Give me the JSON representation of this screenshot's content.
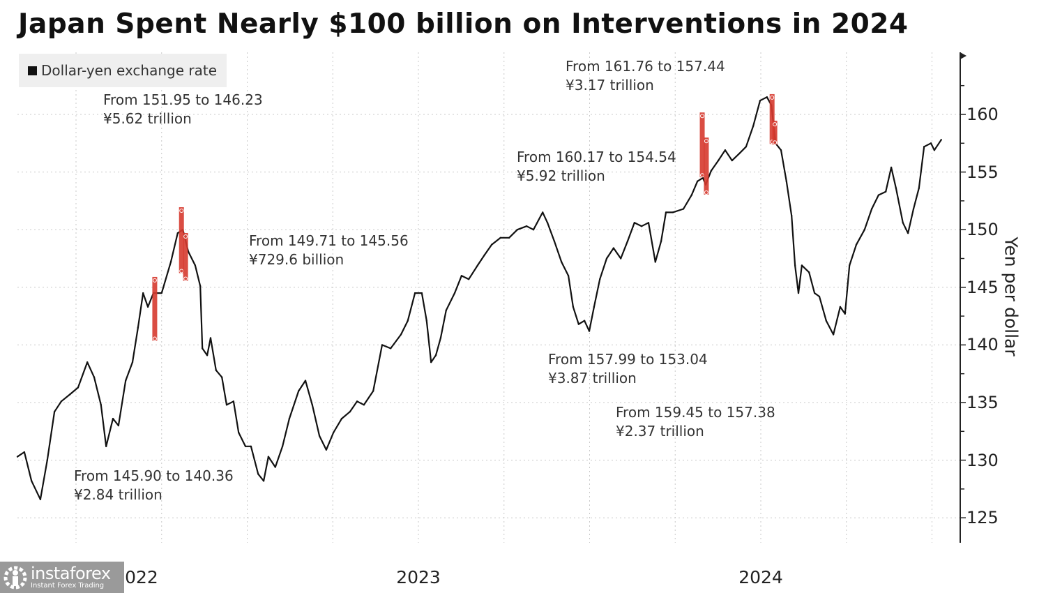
{
  "title": "Japan Spent Nearly $100 billion on Interventions in 2024",
  "watermark": {
    "brand": "instaforex",
    "tagline": "Instant Forex Trading"
  },
  "chart_data": {
    "type": "line",
    "title": "Japan Spent Nearly $100 billion on Interventions in 2024",
    "ylabel": "Yen per dollar",
    "xlabel": "",
    "y_axis_side": "right",
    "ylim": [
      123.5,
      164.5
    ],
    "yticks": [
      125,
      130,
      135,
      140,
      145,
      150,
      155,
      160
    ],
    "xlim": [
      2021.82,
      2024.53
    ],
    "xticks": [
      {
        "value": 2022,
        "label": "2022"
      },
      {
        "value": 2023,
        "label": "2023"
      },
      {
        "value": 2024,
        "label": "2024"
      }
    ],
    "grid": true,
    "legend": {
      "position": "top-left",
      "entries": [
        "Dollar-yen exchange rate"
      ]
    },
    "colors": {
      "series": "#111111",
      "intervention": "#d63a2f",
      "grid": "#c8c8c8",
      "legend_bg": "#efefef"
    },
    "series": [
      {
        "name": "Dollar-yen exchange rate",
        "x": [
          2021.829,
          2021.849,
          2021.87,
          2021.896,
          2021.916,
          2021.937,
          2021.957,
          2021.982,
          2022.006,
          2022.033,
          2022.053,
          2022.073,
          2022.088,
          2022.108,
          2022.124,
          2022.145,
          2022.165,
          2022.181,
          2022.196,
          2022.21,
          2022.226,
          2022.25,
          2022.277,
          2022.297,
          2022.312,
          2022.328,
          2022.348,
          2022.363,
          2022.369,
          2022.383,
          2022.393,
          2022.409,
          2022.426,
          2022.44,
          2022.46,
          2022.475,
          2022.495,
          2022.511,
          2022.532,
          2022.548,
          2022.562,
          2022.582,
          2022.603,
          2022.623,
          2022.65,
          2022.67,
          2022.69,
          2022.711,
          2022.731,
          2022.752,
          2022.776,
          2022.8,
          2022.821,
          2022.841,
          2022.868,
          2022.894,
          2022.919,
          2022.949,
          2022.969,
          2022.99,
          2023.01,
          2023.024,
          2023.037,
          2023.051,
          2023.065,
          2023.081,
          2023.106,
          2023.126,
          2023.147,
          2023.173,
          2023.193,
          2023.214,
          2023.24,
          2023.265,
          2023.289,
          2023.316,
          2023.336,
          2023.363,
          2023.377,
          2023.397,
          2023.418,
          2023.438,
          2023.452,
          2023.468,
          2023.485,
          2023.499,
          2023.513,
          2023.53,
          2023.55,
          2023.57,
          2023.591,
          2023.611,
          2023.631,
          2023.652,
          2023.672,
          2023.692,
          2023.709,
          2023.723,
          2023.743,
          2023.774,
          2023.798,
          2023.815,
          2023.831,
          2023.839,
          2023.855,
          2023.876,
          2023.896,
          2023.916,
          2023.937,
          2023.957,
          2023.978,
          2023.998,
          2024.018,
          2024.031,
          2024.043,
          2024.059,
          2024.075,
          2024.09,
          2024.1,
          2024.11,
          2024.12,
          2024.141,
          2024.157,
          2024.171,
          2024.191,
          2024.212,
          2024.232,
          2024.246,
          2024.259,
          2024.279,
          2024.303,
          2024.324,
          2024.344,
          2024.365,
          2024.381,
          2024.395,
          2024.415,
          2024.43,
          2024.446,
          2024.462,
          2024.477,
          2024.497,
          2024.507,
          2024.527
        ],
        "y": [
          130.3,
          130.7,
          128.2,
          126.6,
          130.0,
          134.2,
          135.1,
          135.7,
          136.3,
          138.5,
          137.2,
          134.8,
          131.2,
          133.6,
          133.0,
          136.9,
          138.5,
          141.5,
          144.5,
          143.3,
          144.5,
          144.5,
          147.2,
          149.7,
          150.0,
          148.1,
          146.9,
          145.1,
          139.7,
          139.1,
          140.6,
          137.8,
          137.2,
          134.8,
          135.1,
          132.4,
          131.2,
          131.2,
          128.8,
          128.2,
          130.3,
          129.4,
          131.2,
          133.6,
          136.0,
          136.9,
          134.8,
          132.1,
          130.9,
          132.4,
          133.6,
          134.2,
          135.1,
          134.8,
          136.0,
          140.0,
          139.7,
          140.9,
          142.1,
          144.5,
          144.5,
          142.1,
          138.5,
          139.1,
          140.6,
          143.0,
          144.5,
          146.0,
          145.7,
          146.9,
          147.8,
          148.7,
          149.3,
          149.3,
          150.0,
          150.3,
          150.0,
          151.5,
          150.6,
          149.0,
          147.2,
          146.0,
          143.3,
          141.8,
          142.1,
          141.2,
          143.3,
          145.7,
          147.5,
          148.4,
          147.5,
          149.0,
          150.6,
          150.3,
          150.6,
          147.2,
          149.0,
          151.5,
          151.5,
          151.8,
          153.0,
          154.2,
          154.5,
          153.9,
          155.1,
          156.0,
          156.9,
          156.0,
          156.6,
          157.2,
          159.0,
          161.2,
          161.5,
          160.8,
          157.5,
          156.9,
          154.2,
          151.2,
          146.9,
          144.5,
          146.9,
          146.3,
          144.5,
          144.2,
          142.1,
          140.9,
          143.3,
          142.7,
          146.9,
          148.7,
          150.0,
          151.8,
          153.0,
          153.3,
          155.4,
          153.6,
          150.6,
          149.7,
          151.8,
          153.6,
          157.2,
          157.5,
          156.9,
          157.8
        ]
      }
    ],
    "interventions": [
      {
        "x": 2022.23,
        "from": 145.9,
        "to": 140.36,
        "amount": "¥2.84 trillion",
        "label": "From 145.90 to 140.36"
      },
      {
        "x": 2022.308,
        "from": 151.95,
        "to": 146.23,
        "amount": "¥5.62 trillion",
        "label": "From 151.95 to 146.23"
      },
      {
        "x": 2022.32,
        "from": 149.71,
        "to": 145.56,
        "amount": "¥729.6 billion",
        "label": "From 149.71 to 145.56"
      },
      {
        "x": 2023.829,
        "from": 160.17,
        "to": 154.54,
        "amount": "¥5.92 trillion",
        "label": "From 160.17 to 154.54"
      },
      {
        "x": 2023.841,
        "from": 157.99,
        "to": 153.04,
        "amount": "¥3.87 trillion",
        "label": "From 157.99 to 153.04"
      },
      {
        "x": 2024.033,
        "from": 161.76,
        "to": 157.44,
        "amount": "¥3.17 trillion",
        "label": "From 161.76 to 157.44"
      },
      {
        "x": 2024.041,
        "from": 159.45,
        "to": 157.38,
        "amount": "¥2.37 trillion",
        "label": "From 159.45 to 157.38"
      }
    ]
  }
}
